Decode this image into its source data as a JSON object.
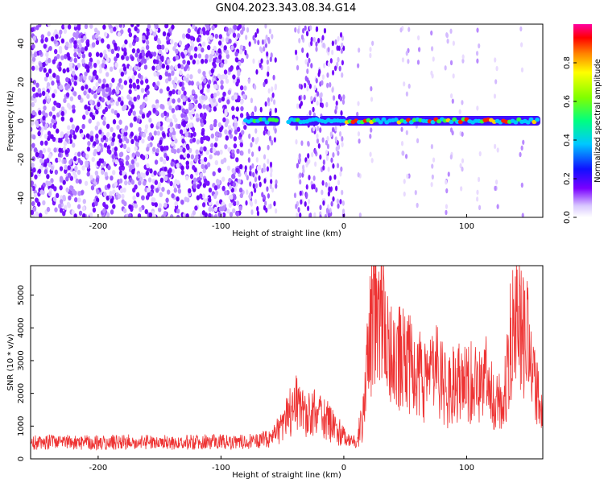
{
  "title": "GN04.2023.343.08.34.G14",
  "chart_data": [
    {
      "type": "heatmap",
      "xlabel": "Height of straight line (km)",
      "ylabel": "Frequency (Hz)",
      "xlim": [
        -255,
        162
      ],
      "ylim": [
        -50,
        50
      ],
      "xticks": [
        -200,
        -100,
        0,
        100
      ],
      "yticks": [
        -40,
        -20,
        0,
        20,
        40
      ],
      "colorbar": {
        "label": "Normalized spectral amplitude",
        "ticks": [
          0.0,
          0.2,
          0.4,
          0.6,
          0.8
        ],
        "range": [
          0,
          1
        ]
      },
      "features": {
        "noise_region_x": [
          -255,
          -80
        ],
        "gap_region_x": [
          -52,
          -45
        ],
        "gap2_region_x": [
          2,
          160
        ],
        "signal_track_x": [
          -80,
          160
        ],
        "signal_track_freq": 0
      }
    },
    {
      "type": "line",
      "xlabel": "Height of straight line (km)",
      "ylabel": "SNR (10 * v/v)",
      "xlim": [
        -255,
        162
      ],
      "ylim": [
        0,
        5900
      ],
      "xticks": [
        -200,
        -100,
        0,
        100
      ],
      "yticks": [
        0,
        1000,
        2000,
        3000,
        4000,
        5000
      ],
      "color": "#ee3333",
      "series": [
        {
          "x": [
            -255,
            -230,
            -200,
            -170,
            -140,
            -110,
            -80,
            -60,
            -50,
            -45,
            -40,
            -35,
            -30,
            -25,
            -20,
            -15,
            -10,
            -5,
            0,
            5,
            10,
            15,
            20,
            25,
            30,
            35,
            40,
            45,
            50,
            55,
            60,
            65,
            70,
            75,
            80,
            85,
            90,
            95,
            100,
            105,
            110,
            115,
            120,
            125,
            130,
            135,
            140,
            145,
            150,
            155,
            160
          ],
          "values": [
            500,
            520,
            500,
            520,
            500,
            520,
            530,
            600,
            1000,
            1400,
            1700,
            1500,
            1300,
            1400,
            1300,
            1200,
            1100,
            900,
            700,
            600,
            600,
            1100,
            3500,
            5000,
            4500,
            3500,
            3000,
            3200,
            3300,
            2800,
            2600,
            2400,
            2300,
            2800,
            2400,
            2000,
            2500,
            2400,
            2200,
            2400,
            2100,
            2500,
            2000,
            1800,
            1500,
            3600,
            4000,
            4200,
            3400,
            2600,
            1500
          ]
        }
      ]
    }
  ]
}
